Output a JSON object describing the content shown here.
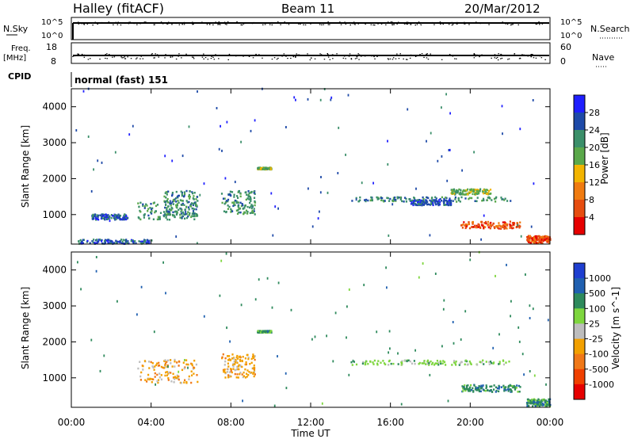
{
  "header": {
    "station": "Halley (fitACF)",
    "beam": "Beam 11",
    "date": "20/Mar/2012"
  },
  "strip_nsky": {
    "left_label": "N.Sky",
    "right_label": "N.Search",
    "left_ticks": [
      "10^5",
      "10^0"
    ],
    "right_ticks": [
      "10^5",
      "10^0"
    ]
  },
  "strip_freq": {
    "left_label_1": "Freq.",
    "left_label_2": "[MHz]",
    "right_label": "Nave",
    "left_ticks": [
      "18",
      "8"
    ],
    "right_ticks": [
      "60",
      "0"
    ]
  },
  "cpid": {
    "label": "CPID",
    "value": "normal (fast) 151"
  },
  "chart_data": [
    {
      "type": "heatmap",
      "name": "power",
      "ylabel": "Slant Range [km]",
      "ylim": [
        180,
        4500
      ],
      "yticks": [
        "1000",
        "2000",
        "3000",
        "4000"
      ],
      "colorbar": {
        "label": "Power [dB]",
        "ticks": [
          "4",
          "8",
          "12",
          "16",
          "20",
          "24",
          "28"
        ],
        "colors": [
          "#1f1fff",
          "#1e4aa8",
          "#3b8f6a",
          "#5aa84a",
          "#f2b400",
          "#f07b10",
          "#e64d10",
          "#e60000"
        ]
      },
      "regions": [
        {
          "t": [
            0.3,
            4.0
          ],
          "r": [
            180,
            300
          ],
          "level": 1
        },
        {
          "t": [
            1.0,
            2.8
          ],
          "r": [
            850,
            1000
          ],
          "level": 1
        },
        {
          "t": [
            3.3,
            6.3
          ],
          "r": [
            850,
            1350
          ],
          "level": 2
        },
        {
          "t": [
            4.6,
            6.3
          ],
          "r": [
            900,
            1650
          ],
          "level": 2
        },
        {
          "t": [
            7.5,
            9.2
          ],
          "r": [
            1000,
            1650
          ],
          "level": 2
        },
        {
          "t": [
            9.3,
            10.0
          ],
          "r": [
            2250,
            2300
          ],
          "level": 3
        },
        {
          "t": [
            14.0,
            22.0
          ],
          "r": [
            1350,
            1480
          ],
          "level": 2
        },
        {
          "t": [
            17.0,
            19.0
          ],
          "r": [
            1250,
            1400
          ],
          "level": 1
        },
        {
          "t": [
            19.0,
            21.0
          ],
          "r": [
            1550,
            1700
          ],
          "level": 3
        },
        {
          "t": [
            19.5,
            22.5
          ],
          "r": [
            600,
            800
          ],
          "level": 6
        },
        {
          "t": [
            22.8,
            24.0
          ],
          "r": [
            200,
            400
          ],
          "level": 6
        }
      ]
    },
    {
      "type": "heatmap",
      "name": "velocity",
      "xlabel": "Time UT",
      "ylabel": "Slant Range [km]",
      "ylim": [
        180,
        4500
      ],
      "yticks": [
        "1000",
        "2000",
        "3000",
        "4000"
      ],
      "xticks": [
        "00:00",
        "04:00",
        "08:00",
        "12:00",
        "16:00",
        "20:00",
        "00:00"
      ],
      "colorbar": {
        "label": "Velocity [m s^-1]",
        "ticks": [
          "1000",
          "500",
          "100",
          "25",
          "-25",
          "-100",
          "-500",
          "-1000"
        ],
        "colors": [
          "#1f3fd0",
          "#2060b0",
          "#2e8a5c",
          "#7ed63e",
          "#bdbdbd",
          "#f2a000",
          "#f07818",
          "#f04000",
          "#e60000"
        ]
      },
      "regions": [
        {
          "t": [
            3.3,
            6.3
          ],
          "r": [
            850,
            1500
          ],
          "level": "-100"
        },
        {
          "t": [
            7.5,
            9.2
          ],
          "r": [
            1000,
            1650
          ],
          "level": "-100"
        },
        {
          "t": [
            9.3,
            10.0
          ],
          "r": [
            2250,
            2300
          ],
          "level": "100"
        },
        {
          "t": [
            14.0,
            22.0
          ],
          "r": [
            1350,
            1480
          ],
          "level": "25"
        },
        {
          "t": [
            19.5,
            22.5
          ],
          "r": [
            600,
            800
          ],
          "level": "100"
        },
        {
          "t": [
            22.8,
            24.0
          ],
          "r": [
            200,
            400
          ],
          "level": "100"
        }
      ]
    }
  ]
}
